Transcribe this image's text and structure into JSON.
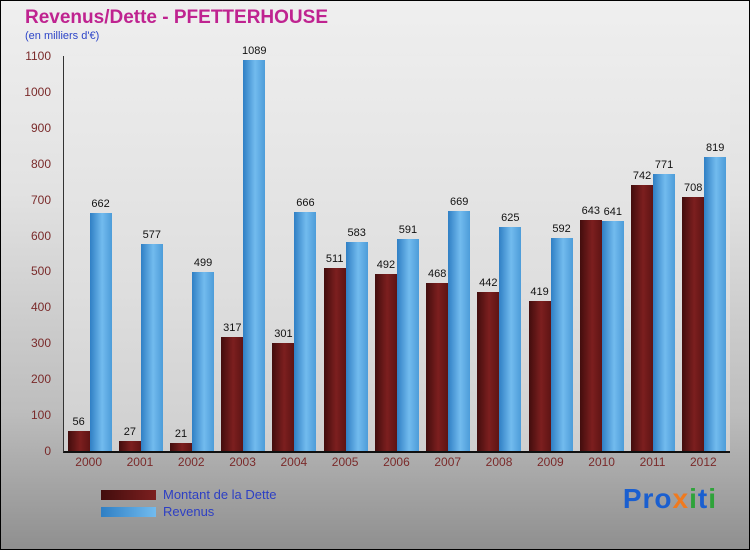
{
  "header": {
    "title": "Revenus/Dette - PFETTERHOUSE",
    "subtitle": "(en milliers d'€)"
  },
  "chart_data": {
    "type": "bar",
    "title": "Revenus/Dette - PFETTERHOUSE",
    "subtitle": "(en milliers d'€)",
    "categories": [
      "2000",
      "2001",
      "2002",
      "2003",
      "2004",
      "2005",
      "2006",
      "2007",
      "2008",
      "2009",
      "2010",
      "2011",
      "2012"
    ],
    "series": [
      {
        "name": "Montant de la Dette",
        "color": "#6b1717",
        "values": [
          56,
          27,
          21,
          317,
          301,
          511,
          492,
          468,
          442,
          419,
          643,
          742,
          708
        ]
      },
      {
        "name": "Revenus",
        "color": "#5aa7e0",
        "values": [
          662,
          577,
          499,
          1089,
          666,
          583,
          591,
          669,
          625,
          592,
          641,
          771,
          819
        ]
      }
    ],
    "ylim": [
      0,
      1100
    ],
    "ytick_step": 100,
    "grid": false,
    "legend_position": "bottom-left",
    "xlabel": "",
    "ylabel": ""
  },
  "colors": {
    "title": "#bf2390",
    "subtitle": "#2d45c8",
    "axis_text": "#7a2a2a",
    "value_text": "#111111"
  },
  "logo": {
    "letters": [
      {
        "ch": "P",
        "color": "#1a5fd0"
      },
      {
        "ch": "r",
        "color": "#1a5fd0"
      },
      {
        "ch": "o",
        "color": "#1a5fd0"
      },
      {
        "ch": "x",
        "color": "#f07a1e"
      },
      {
        "ch": "i",
        "color": "#2fa33a"
      },
      {
        "ch": "t",
        "color": "#1a5fd0"
      },
      {
        "ch": "i",
        "color": "#2fa33a"
      }
    ]
  }
}
